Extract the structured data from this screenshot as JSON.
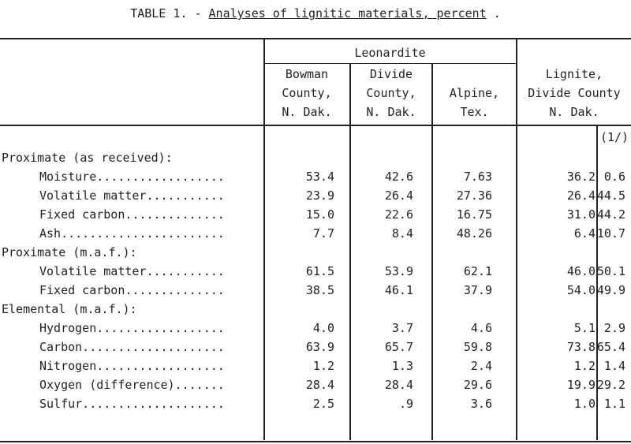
{
  "caption": {
    "prefix": "TABLE 1. - ",
    "title": "Analyses of lignitic materials, percent",
    "suffix": " ."
  },
  "headers": {
    "group": "Leonardite",
    "col1": [
      "Bowman",
      "County,",
      "N. Dak."
    ],
    "col2": [
      "Divide",
      "County,",
      "N. Dak."
    ],
    "col3": [
      "Alpine,",
      "Tex."
    ],
    "col4": [
      "Lignite,",
      "Divide County",
      "N. Dak."
    ],
    "footnote": "(1/)"
  },
  "rows": [
    {
      "label": "Proximate (as received):",
      "indent": false,
      "values": []
    },
    {
      "label": "Moisture..................",
      "indent": true,
      "values": [
        "53.4",
        "42.6",
        "7.63",
        "36.2",
        "0.6"
      ]
    },
    {
      "label": "Volatile matter...........",
      "indent": true,
      "values": [
        "23.9",
        "26.4",
        "27.36",
        "26.4",
        "44.5"
      ]
    },
    {
      "label": "Fixed carbon..............",
      "indent": true,
      "values": [
        "15.0",
        "22.6",
        "16.75",
        "31.0",
        "44.2"
      ]
    },
    {
      "label": "Ash.......................",
      "indent": true,
      "values": [
        "7.7",
        "8.4",
        "48.26",
        "6.4",
        "10.7"
      ]
    },
    {
      "label": "Proximate (m.a.f.):",
      "indent": false,
      "values": []
    },
    {
      "label": "Volatile matter...........",
      "indent": true,
      "values": [
        "61.5",
        "53.9",
        "62.1",
        "46.0",
        "50.1"
      ]
    },
    {
      "label": "Fixed carbon..............",
      "indent": true,
      "values": [
        "38.5",
        "46.1",
        "37.9",
        "54.0",
        "49.9"
      ]
    },
    {
      "label": "Elemental (m.a.f.):",
      "indent": false,
      "values": []
    },
    {
      "label": "Hydrogen..................",
      "indent": true,
      "values": [
        "4.0",
        "3.7",
        "4.6",
        "5.1",
        "2.9"
      ]
    },
    {
      "label": "Carbon....................",
      "indent": true,
      "values": [
        "63.9",
        "65.7",
        "59.8",
        "73.8",
        "65.4"
      ]
    },
    {
      "label": "Nitrogen..................",
      "indent": true,
      "values": [
        "1.2",
        "1.3",
        "2.4",
        "1.2",
        "1.4"
      ]
    },
    {
      "label": "Oxygen (difference).......",
      "indent": true,
      "values": [
        "28.4",
        "28.4",
        "29.6",
        "19.9",
        "29.2"
      ]
    },
    {
      "label": "Sulfur....................",
      "indent": true,
      "values": [
        "2.5",
        ".9",
        "3.6",
        "1.0",
        "1.1"
      ]
    }
  ]
}
